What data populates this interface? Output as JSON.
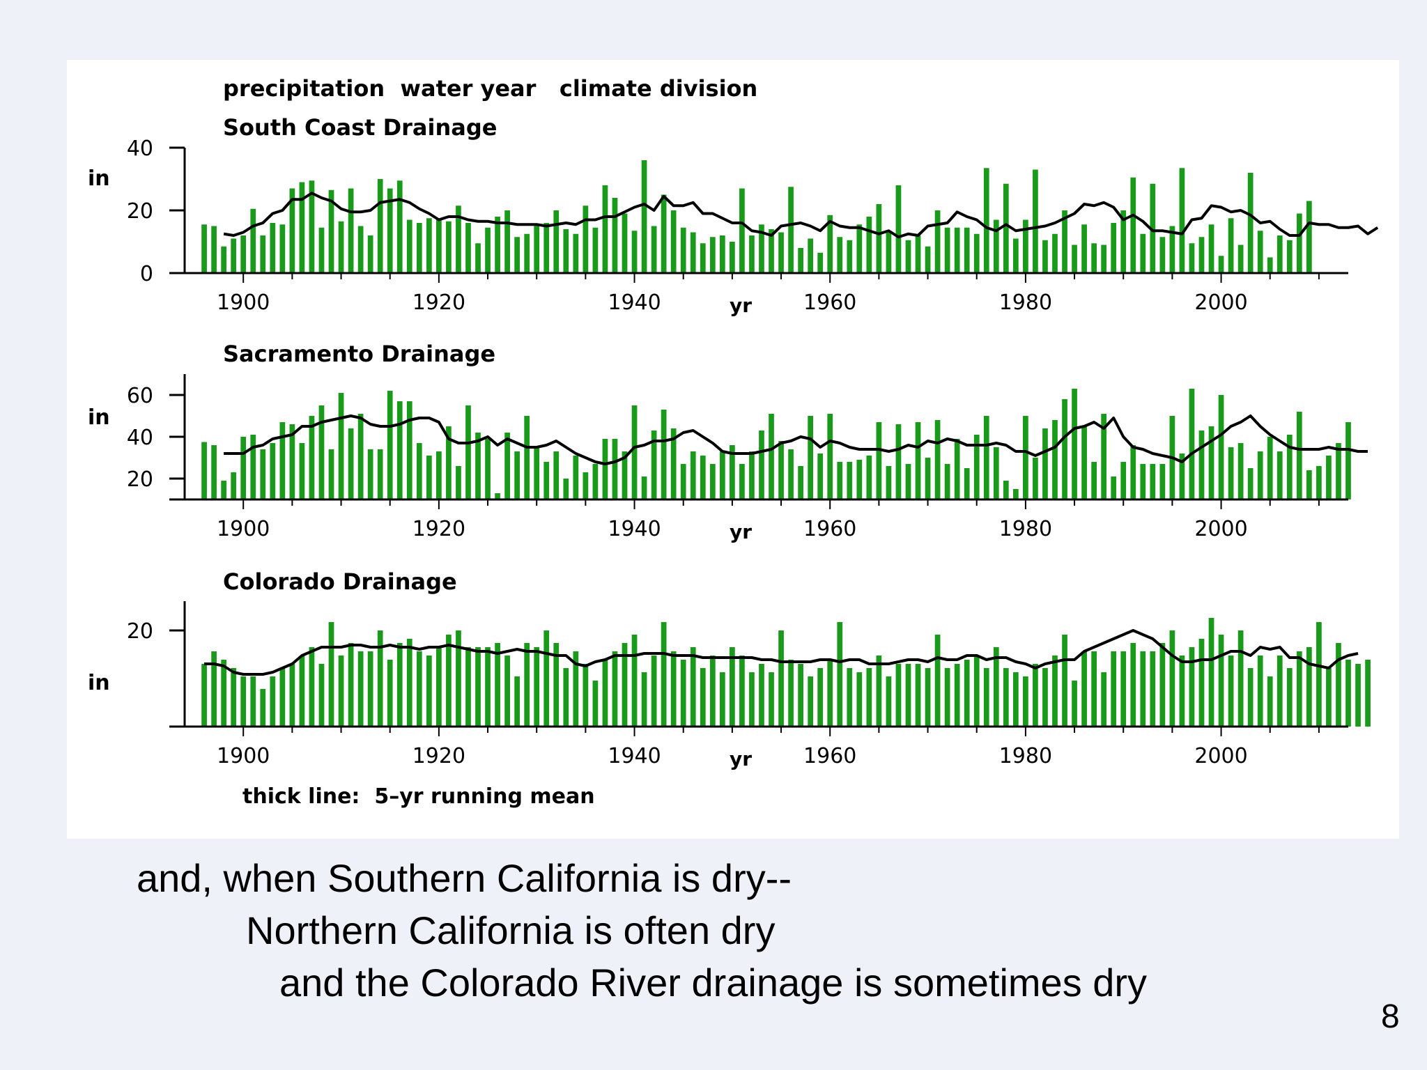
{
  "caption": {
    "line1": "and, when Southern California is dry--",
    "line2": "Northern California is often dry",
    "line3": "and the Colorado River drainage is sometimes dry"
  },
  "slide_number": "8",
  "colors": {
    "bar": "#1a9a1a",
    "mean_line": "#000000",
    "background": "#eef2f8"
  },
  "chart_data": {
    "type": "bar",
    "title": "precipitation  water year   climate division",
    "footnote": "thick line:  5–yr running mean",
    "x_start_year": 1896,
    "xlim": [
      1894,
      2013
    ],
    "x_ticks": [
      1900,
      1920,
      1940,
      1960,
      1980,
      2000
    ],
    "xlabel": "yr",
    "panels": [
      {
        "name": "South Coast Drainage",
        "ylabel": "in",
        "ylim": [
          0,
          40
        ],
        "y_ticks": [
          0,
          20,
          40
        ],
        "values": [
          15.5,
          15,
          8.5,
          11,
          12,
          20.5,
          12,
          16,
          15.5,
          27,
          29,
          29.5,
          14.5,
          26.5,
          16.5,
          27,
          15,
          12,
          30,
          27,
          29.5,
          17,
          16,
          17.5,
          17.5,
          16.5,
          21.5,
          16,
          9.5,
          14.5,
          18,
          20,
          11.5,
          12.5,
          15.5,
          16,
          20,
          14,
          12.5,
          21.5,
          14.5,
          28,
          24,
          19,
          13.5,
          36,
          15,
          25,
          20,
          14.5,
          13,
          9.5,
          11.5,
          12,
          10,
          27,
          12,
          15.5,
          14,
          13,
          27.5,
          8,
          11,
          6.5,
          18.5,
          11.5,
          10.5,
          15.5,
          18,
          22,
          13.5,
          28,
          10.5,
          12,
          8.5,
          20,
          14.5,
          14.5,
          14.5,
          12.5,
          33.5,
          17,
          28.5,
          11,
          17,
          33,
          10.5,
          12.5,
          20,
          9,
          15.5,
          9.5,
          9,
          16,
          20,
          30.5,
          12.5,
          28.5,
          11.5,
          15,
          33.5,
          9.5,
          11.5,
          15.5,
          5.5,
          17.5,
          9,
          32,
          13.5,
          5,
          12,
          10.5,
          19,
          23
        ],
        "mean_start_year": 1898,
        "running_mean": [
          12.5,
          12,
          13,
          15,
          16,
          19,
          20,
          23.5,
          23.5,
          25.5,
          24,
          23,
          20.5,
          19.5,
          19.5,
          20,
          22.5,
          23,
          23.5,
          22.5,
          20.5,
          19,
          17,
          18,
          18,
          17,
          16.5,
          16.5,
          16,
          16,
          15.5,
          15.5,
          15.5,
          15,
          15.5,
          16,
          15.5,
          17,
          17,
          18,
          18,
          19.5,
          21,
          22,
          20,
          24.5,
          21.5,
          21.5,
          22.5,
          19,
          19,
          17.5,
          16,
          16,
          13.5,
          13,
          12,
          15,
          15.5,
          16,
          15,
          13.5,
          16.5,
          15,
          14.5,
          14.5,
          13.5,
          12.5,
          13.5,
          11.5,
          12.5,
          12,
          15,
          15.5,
          16,
          19.5,
          18,
          17,
          14.5,
          13.5,
          15.5,
          13.5,
          14,
          14.5,
          15,
          16,
          17.5,
          19,
          22,
          21.5,
          22.5,
          21,
          17,
          18.5,
          16.5,
          13.5,
          13.5,
          13,
          12.5,
          17,
          17.5,
          21.5,
          21,
          19.5,
          20,
          18.5,
          16,
          16.5,
          14,
          12,
          12,
          16,
          15.5,
          15.5,
          14.5,
          14.5,
          15,
          12.5,
          14.5
        ]
      },
      {
        "name": "Sacramento Drainage",
        "ylabel": "in",
        "ylim": [
          10,
          70
        ],
        "y_ticks": [
          20,
          40,
          60
        ],
        "values": [
          37.5,
          36,
          19,
          23,
          40,
          41,
          34,
          37,
          47,
          46,
          37,
          50,
          55,
          34,
          61,
          44,
          51,
          34,
          34,
          62,
          57,
          57,
          37,
          31,
          33,
          45,
          26,
          55,
          42,
          39,
          13,
          42,
          33,
          50,
          35,
          28,
          33,
          20,
          31,
          23,
          27,
          39,
          39,
          33,
          55,
          21,
          43,
          53,
          44,
          27,
          33,
          31,
          27,
          33,
          36,
          27,
          33,
          43,
          51,
          38,
          34,
          26,
          50,
          32,
          51,
          28,
          28,
          29,
          31,
          47,
          26,
          46,
          27,
          47,
          30,
          48,
          27,
          39,
          25,
          41,
          50,
          35,
          19,
          15,
          50,
          30,
          44,
          48,
          58,
          63,
          45,
          28,
          51,
          21,
          28,
          36,
          27,
          27,
          27,
          50,
          32,
          63,
          43,
          45,
          60,
          35,
          37,
          25,
          33,
          40,
          33,
          41,
          52,
          24,
          26,
          31,
          37,
          47
        ],
        "mean_start_year": 1898,
        "running_mean": [
          32,
          32,
          32,
          35,
          36,
          39,
          40,
          41,
          45,
          45,
          47,
          48,
          49,
          50,
          49,
          46,
          45,
          45,
          46,
          48,
          49,
          49,
          47,
          39,
          37,
          37,
          38,
          40,
          36,
          39,
          37,
          35,
          35,
          36,
          38,
          35,
          32,
          30,
          28,
          27,
          28,
          30,
          35,
          36,
          38,
          38,
          39,
          42,
          43,
          40,
          37,
          33,
          32,
          32,
          32,
          33,
          34,
          37,
          38,
          40,
          39,
          35,
          38,
          37,
          35,
          34,
          34,
          34,
          33,
          34,
          36,
          35,
          38,
          37,
          39,
          38,
          36,
          36,
          36,
          37,
          36,
          33,
          33,
          31,
          33,
          35,
          40,
          44,
          45,
          47,
          44,
          49,
          40,
          35,
          34,
          32,
          31,
          30,
          28,
          32,
          35,
          38,
          41,
          45,
          47,
          50,
          45,
          41,
          38,
          35,
          34,
          34,
          34,
          35,
          34,
          34,
          33,
          33
        ]
      },
      {
        "name": "Colorado Drainage",
        "ylabel": "in",
        "ylim": [
          -3,
          27
        ],
        "y_ticks": [
          20
        ],
        "values": [
          12,
          15,
          13,
          11,
          9,
          9,
          6,
          9,
          11,
          12,
          14,
          16,
          12,
          22,
          14,
          17,
          15,
          15,
          20,
          13,
          17,
          18,
          15,
          14,
          16,
          19,
          20,
          16,
          16,
          16,
          17,
          14,
          9,
          17,
          16,
          20,
          17,
          11,
          15,
          12,
          8,
          13,
          15,
          17,
          19,
          10,
          14,
          22,
          15,
          13,
          16,
          11,
          14,
          10,
          16,
          14,
          10,
          12,
          10,
          20,
          13,
          12,
          9,
          11,
          13,
          22,
          11,
          10,
          11,
          14,
          9,
          12,
          12,
          12,
          11,
          19,
          11,
          12,
          13,
          14,
          11,
          16,
          11,
          10,
          9,
          12,
          11,
          14,
          19,
          8,
          15,
          15,
          10,
          15,
          15,
          17,
          15,
          15,
          17,
          20,
          14,
          16,
          18,
          23,
          19,
          14,
          20,
          11,
          14,
          9,
          14,
          11,
          15,
          16,
          22,
          11,
          17,
          13,
          12,
          13
        ],
        "mean_start_year": 1896,
        "running_mean": [
          12,
          12,
          11.5,
          10,
          9.5,
          9.5,
          9.5,
          10,
          11,
          12,
          14,
          15,
          16,
          16,
          16,
          16.5,
          16.5,
          16,
          16,
          16.5,
          16,
          16,
          15.5,
          16,
          16,
          16.5,
          16,
          15.5,
          15,
          15,
          14.5,
          15,
          15.5,
          15,
          15,
          14.5,
          14,
          14,
          12,
          11.5,
          12.5,
          13,
          14,
          14,
          14,
          14.5,
          14.5,
          14.5,
          14,
          14,
          14,
          13.5,
          13.5,
          13.5,
          13.5,
          13.5,
          13.5,
          13,
          13,
          12.5,
          12.5,
          12.5,
          12.5,
          13,
          13,
          12.5,
          13,
          13,
          12,
          12,
          12,
          12.5,
          13,
          13,
          12.5,
          13.5,
          13,
          13,
          14,
          14,
          13,
          13.5,
          13.5,
          12.5,
          12,
          11,
          12,
          12.5,
          13,
          13,
          15,
          16,
          17,
          18,
          19,
          20,
          19,
          18,
          16,
          14,
          12.5,
          12.5,
          13,
          13,
          14,
          15,
          15,
          14,
          16,
          15.5,
          16,
          13.5,
          13.5,
          12,
          11.5,
          11,
          13,
          14,
          14.5
        ]
      }
    ]
  }
}
